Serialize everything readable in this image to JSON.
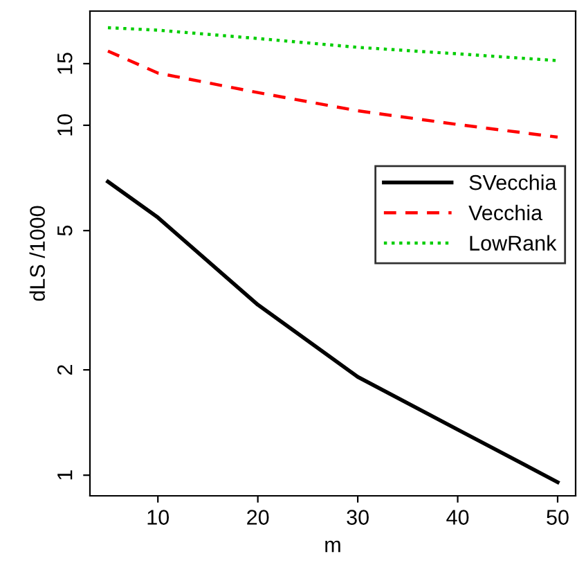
{
  "chart_data": {
    "type": "line",
    "xlabel": "m",
    "ylabel": "dLS /1000",
    "log": "y",
    "x": [
      5,
      10,
      20,
      30,
      40,
      50
    ],
    "series": [
      {
        "name": "SVecchia",
        "color": "#000000",
        "line_style": "solid",
        "values": [
          6.9,
          5.45,
          3.07,
          1.91,
          1.35,
          0.955
        ]
      },
      {
        "name": "Vecchia",
        "color": "#ff0000",
        "line_style": "dashed",
        "values": [
          16.3,
          14.1,
          12.4,
          11.0,
          10.05,
          9.25
        ]
      },
      {
        "name": "LowRank",
        "color": "#00cd00",
        "line_style": "dotted",
        "values": [
          19.0,
          18.7,
          17.7,
          16.7,
          16.0,
          15.3
        ]
      }
    ],
    "xlim": [
      3.2,
      51.8
    ],
    "ylim": [
      0.873,
      21.2
    ],
    "xticks": [
      10,
      20,
      30,
      40,
      50
    ],
    "yticks": [
      1,
      2,
      5,
      10,
      15
    ],
    "grid": false,
    "legend": "right",
    "marker": "none"
  }
}
